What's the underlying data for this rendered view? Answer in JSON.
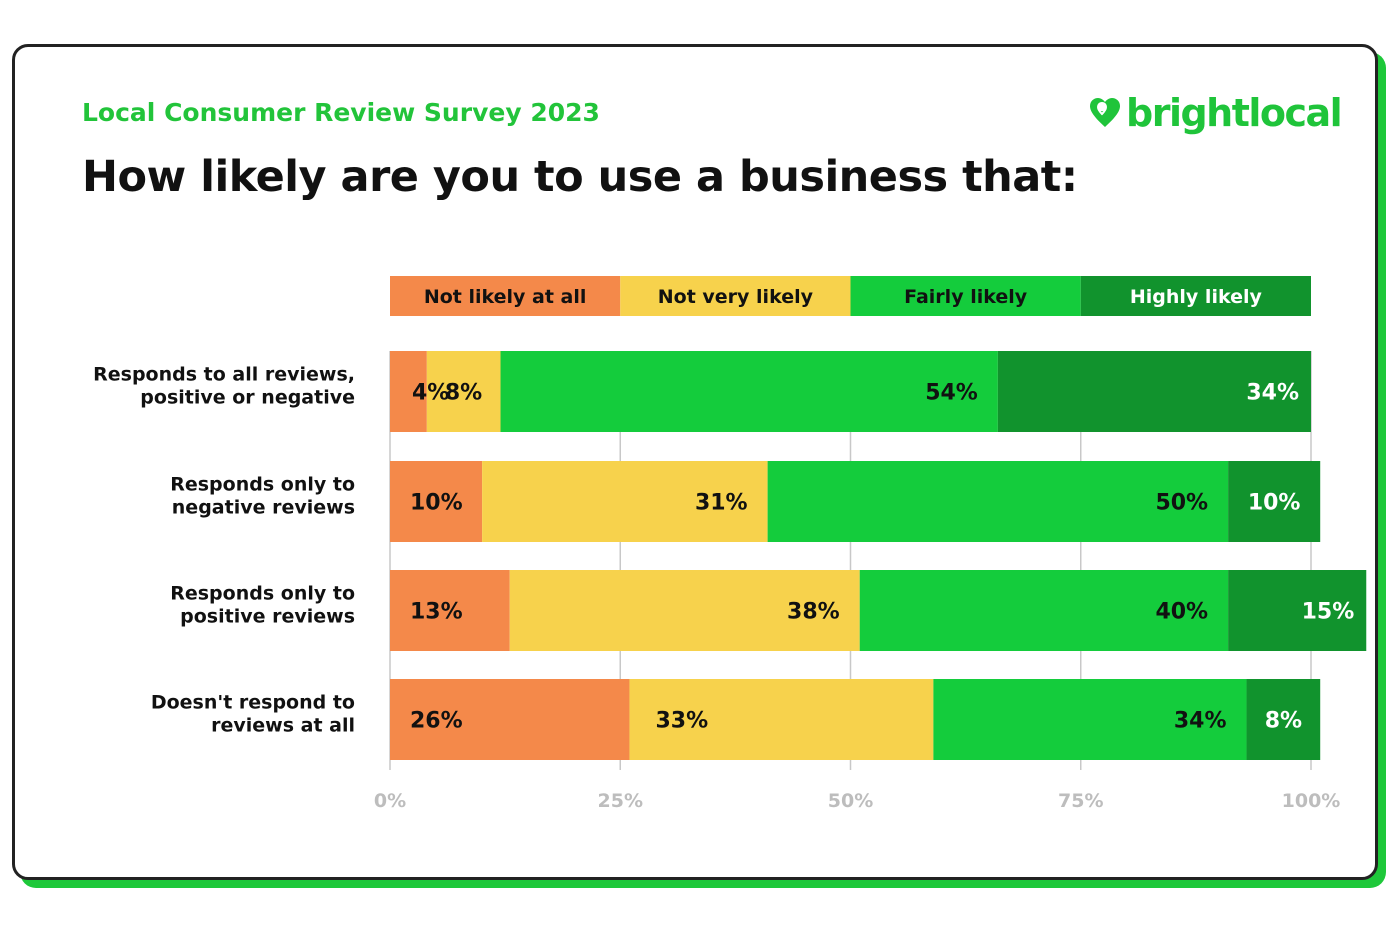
{
  "header": {
    "subtitle": "Local Consumer Review Survey 2023",
    "title": "How likely are you to use a business that:",
    "logo_text": "brightlocal",
    "logo_icon": "heart-pin-icon"
  },
  "colors": {
    "brand_green": "#1fc43a",
    "not_likely": "#f4894a",
    "not_very_likely": "#f7d24c",
    "fairly_likely": "#14cc3c",
    "highly_likely": "#11932d",
    "tick_gray": "#bdbdbd"
  },
  "chart_data": {
    "type": "bar",
    "orientation": "horizontal",
    "stacked": true,
    "title": "How likely are you to use a business that:",
    "subtitle": "Local Consumer Review Survey 2023",
    "categories": [
      [
        "Responds to all reviews,",
        "positive or negative"
      ],
      [
        "Responds only to",
        "negative reviews"
      ],
      [
        "Responds only to",
        "positive reviews"
      ],
      [
        "Doesn't respond to",
        "reviews at all"
      ]
    ],
    "series": [
      {
        "name": "Not likely at all",
        "color": "#f4894a",
        "label_color": "#111111",
        "values": [
          4,
          10,
          13,
          26
        ]
      },
      {
        "name": "Not very likely",
        "color": "#f7d24c",
        "label_color": "#111111",
        "values": [
          8,
          31,
          38,
          33
        ]
      },
      {
        "name": "Fairly likely",
        "color": "#14cc3c",
        "label_color": "#111111",
        "values": [
          54,
          50,
          40,
          34
        ]
      },
      {
        "name": "Highly likely",
        "color": "#11932d",
        "label_color": "#ffffff",
        "values": [
          34,
          10,
          15,
          8
        ]
      }
    ],
    "xlim": [
      0,
      100
    ],
    "xticks": [
      0,
      25,
      50,
      75,
      100
    ],
    "xtick_labels": [
      "0%",
      "25%",
      "50%",
      "75%",
      "100%"
    ],
    "value_suffix": "%",
    "legend_position": "top",
    "grid": true
  }
}
